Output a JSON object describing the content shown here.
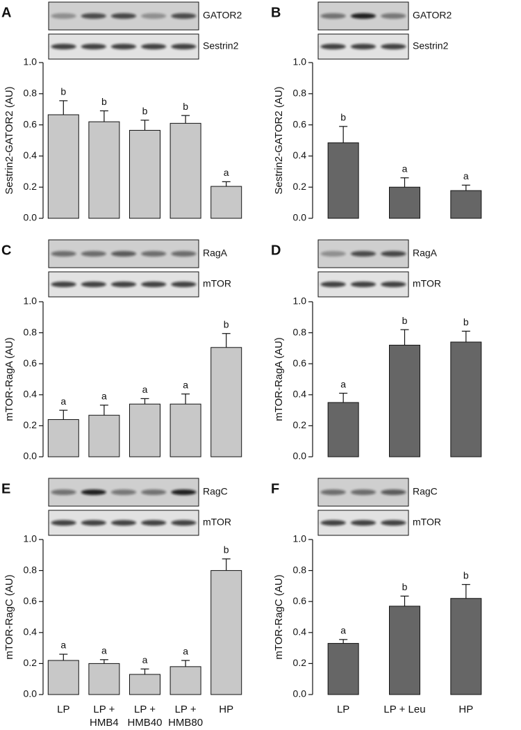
{
  "chart_data": [
    {
      "type": "bar",
      "panel": "A",
      "ylabel": "Sestrin2-GATOR2 (AU)",
      "blots": [
        {
          "label": "GATOR2"
        },
        {
          "label": "Sestrin2"
        }
      ],
      "categories": [
        null,
        null,
        null,
        null,
        null
      ],
      "values": [
        0.665,
        0.62,
        0.565,
        0.61,
        0.205
      ],
      "errors": [
        0.09,
        0.07,
        0.065,
        0.05,
        0.03
      ],
      "annotations": [
        "b",
        "b",
        "b",
        "b",
        "a"
      ],
      "color": "#c8c8c8",
      "ylim": [
        0,
        1
      ],
      "yticks": [
        {
          "value": 0,
          "label": "0.0"
        },
        0.2,
        0.4,
        0.6,
        0.8,
        {
          "value": 1,
          "label": "1.0"
        }
      ]
    },
    {
      "type": "bar",
      "panel": "B",
      "ylabel": "Sestrin2-GATOR2 (AU)",
      "blots": [
        {
          "label": "GATOR2"
        },
        {
          "label": "Sestrin2"
        }
      ],
      "categories": [
        null,
        null,
        null
      ],
      "values": [
        0.485,
        0.2,
        0.178
      ],
      "errors": [
        0.105,
        0.06,
        0.035
      ],
      "annotations": [
        "b",
        "a",
        "a"
      ],
      "color": "#666666",
      "ylim": [
        0,
        1
      ],
      "yticks": [
        {
          "value": 0,
          "label": "0.0"
        },
        0.2,
        0.4,
        0.6,
        0.8,
        {
          "value": 1,
          "label": "1.0"
        }
      ]
    },
    {
      "type": "bar",
      "panel": "C",
      "ylabel": "mTOR-RagA (AU)",
      "blots": [
        {
          "label": "RagA"
        },
        {
          "label": "mTOR"
        }
      ],
      "categories": [
        null,
        null,
        null,
        null,
        null
      ],
      "values": [
        0.24,
        0.268,
        0.34,
        0.34,
        0.705
      ],
      "errors": [
        0.06,
        0.065,
        0.035,
        0.065,
        0.09
      ],
      "annotations": [
        "a",
        "a",
        "a",
        "a",
        "b"
      ],
      "color": "#c8c8c8",
      "ylim": [
        0,
        1
      ],
      "yticks": [
        {
          "value": 0,
          "label": "0.0"
        },
        0.2,
        0.4,
        0.6,
        0.8,
        {
          "value": 1,
          "label": "1.0"
        }
      ]
    },
    {
      "type": "bar",
      "panel": "D",
      "ylabel": "mTOR-RagA (AU)",
      "blots": [
        {
          "label": "RagA"
        },
        {
          "label": "mTOR"
        }
      ],
      "categories": [
        null,
        null,
        null
      ],
      "values": [
        0.35,
        0.72,
        0.74
      ],
      "errors": [
        0.06,
        0.1,
        0.07
      ],
      "annotations": [
        "a",
        "b",
        "b"
      ],
      "color": "#666666",
      "ylim": [
        0,
        1
      ],
      "yticks": [
        {
          "value": 0,
          "label": "0.0"
        },
        0.2,
        0.4,
        0.6,
        0.8,
        {
          "value": 1,
          "label": "1.0"
        }
      ]
    },
    {
      "type": "bar",
      "panel": "E",
      "ylabel": "mTOR-RagC (AU)",
      "blots": [
        {
          "label": "RagC"
        },
        {
          "label": "mTOR"
        }
      ],
      "categories": [
        "LP",
        "LP +\nHMB4",
        "LP +\nHMB40",
        "LP +\nHMB80",
        "HP"
      ],
      "values": [
        0.22,
        0.2,
        0.13,
        0.18,
        0.8
      ],
      "errors": [
        0.04,
        0.025,
        0.035,
        0.04,
        0.075
      ],
      "annotations": [
        "a",
        "a",
        "a",
        "a",
        "b"
      ],
      "color": "#c8c8c8",
      "ylim": [
        0,
        1
      ],
      "yticks": [
        {
          "value": 0,
          "label": "0.0"
        },
        0.2,
        0.4,
        0.6,
        0.8,
        {
          "value": 1,
          "label": "1.0"
        }
      ]
    },
    {
      "type": "bar",
      "panel": "F",
      "ylabel": "mTOR-RagC (AU)",
      "blots": [
        {
          "label": "RagC"
        },
        {
          "label": "mTOR"
        }
      ],
      "categories": [
        "LP",
        "LP + Leu",
        "HP"
      ],
      "values": [
        0.33,
        0.57,
        0.62
      ],
      "errors": [
        0.025,
        0.065,
        0.09
      ],
      "annotations": [
        "a",
        "b",
        "b"
      ],
      "color": "#666666",
      "ylim": [
        0,
        1
      ],
      "yticks": [
        {
          "value": 0,
          "label": "0.0"
        },
        0.2,
        0.4,
        0.6,
        0.8,
        {
          "value": 1,
          "label": "1.0"
        }
      ]
    }
  ]
}
